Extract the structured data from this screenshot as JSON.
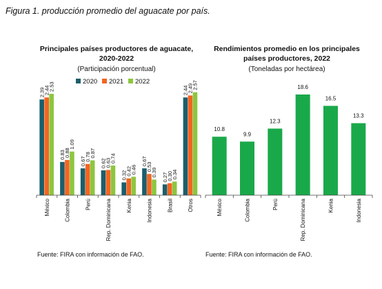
{
  "figure_caption": "Figura 1. producción promedio del aguacate por país.",
  "colors": {
    "s2020": "#1b5e6b",
    "s2021": "#f26522",
    "s2022": "#8dc63f",
    "bar2": "#1aa94a",
    "axis": "#444444"
  },
  "chart_data": [
    {
      "type": "bar",
      "title_line1": "Principales países productores de aguacate,",
      "title_line2": "2020-2022",
      "subtitle": "(Participación porcentual)",
      "source": "Fuente: FIRA con información de FAO.",
      "categories": [
        "México",
        "Colombia",
        "Perú",
        "Rep. Dominicana",
        "Kenia",
        "Indonesia",
        "Brasil",
        "Otros"
      ],
      "series": [
        {
          "name": "2020",
          "values": [
            2.39,
            0.83,
            0.67,
            0.62,
            0.32,
            0.67,
            0.27,
            2.44
          ]
        },
        {
          "name": "2021",
          "values": [
            2.44,
            0.88,
            0.78,
            0.63,
            0.42,
            0.53,
            0.3,
            2.49
          ]
        },
        {
          "name": "2022",
          "values": [
            2.53,
            1.09,
            0.87,
            0.74,
            0.46,
            0.39,
            0.34,
            2.57
          ]
        }
      ],
      "value_labels": [
        [
          "2.39",
          "0.83",
          "0.67",
          "0.62",
          "0.32",
          "0.67",
          "0.27",
          "2.44"
        ],
        [
          "2.44",
          "0.88",
          "0.78",
          "0.63",
          "0.42",
          "0.53",
          "0.30",
          "2.49"
        ],
        [
          "2.53",
          "1.09",
          "0.87",
          "0.74",
          "0.46",
          "0.39",
          "0.34",
          "2.57"
        ]
      ],
      "ylim": [
        0,
        2.6
      ],
      "legend": "top-right",
      "grid": false
    },
    {
      "type": "bar",
      "title_line1": "Rendimientos promedio en los principales",
      "title_line2": "países productores, 2022",
      "subtitle": "(Toneladas por hectárea)",
      "source": "Fuente: FIRA con información de FAO.",
      "categories": [
        "México",
        "Colombia",
        "Perú",
        "Rep. Dominicana",
        "Kenia",
        "Indonesia"
      ],
      "values": [
        10.8,
        9.9,
        12.3,
        18.6,
        16.5,
        13.3
      ],
      "value_labels": [
        "10.8",
        "9.9",
        "12.3",
        "18.6",
        "16.5",
        "13.3"
      ],
      "ylim": [
        0,
        18.6
      ],
      "grid": false
    }
  ]
}
